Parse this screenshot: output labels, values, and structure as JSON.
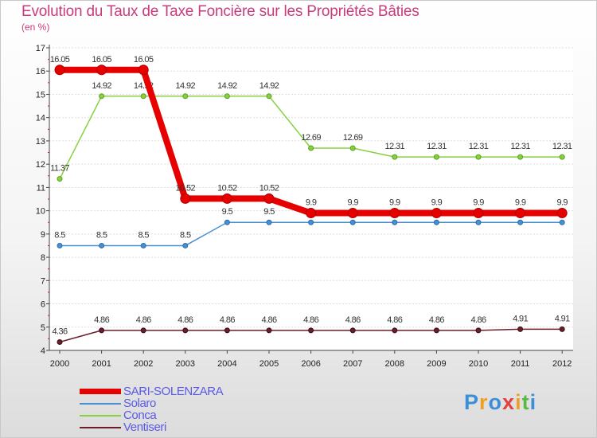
{
  "header": {
    "title": "Evolution du Taux de Taxe Foncière sur les Propriétés Bâties",
    "subtitle": "(en %)"
  },
  "chart_data": {
    "type": "line",
    "title": "Evolution du Taux de Taxe Foncière sur les Propriétés Bâties",
    "ylabel": "(en %)",
    "xlabel": "",
    "ylim": [
      4,
      17
    ],
    "yticks": [
      4,
      5,
      6,
      7,
      8,
      9,
      10,
      11,
      12,
      13,
      14,
      15,
      16,
      17
    ],
    "categories": [
      "2000",
      "2001",
      "2002",
      "2003",
      "2004",
      "2005",
      "2006",
      "2007",
      "2008",
      "2009",
      "2010",
      "2011",
      "2012"
    ],
    "legend_position": "bottom-left",
    "series": [
      {
        "name": "Ventiseri",
        "color": "#6b1e2a",
        "values": [
          4.36,
          4.86,
          4.86,
          4.86,
          4.86,
          4.86,
          4.86,
          4.86,
          4.86,
          4.86,
          4.86,
          4.91,
          4.91
        ],
        "labels": [
          "4.36",
          "4.86",
          "4.86",
          "4.86",
          "4.86",
          "4.86",
          "4.86",
          "4.86",
          "4.86",
          "4.86",
          "4.86",
          "4.91",
          "4.91"
        ]
      },
      {
        "name": "Solaro",
        "color": "#4a90d0",
        "values": [
          8.5,
          8.5,
          8.5,
          8.5,
          9.5,
          9.5,
          9.5,
          9.5,
          9.5,
          9.5,
          9.5,
          9.5,
          9.5
        ],
        "labels": [
          "8.5",
          "8.5",
          "8.5",
          "8.5",
          "9.5",
          "9.5",
          "",
          "",
          "",
          "",
          "",
          "",
          ""
        ]
      },
      {
        "name": "Conca",
        "color": "#88d040",
        "values": [
          11.37,
          14.92,
          14.92,
          14.92,
          14.92,
          14.92,
          12.69,
          12.69,
          12.31,
          12.31,
          12.31,
          12.31,
          12.31
        ],
        "labels": [
          "11.37",
          "14.92",
          "14.92",
          "14.92",
          "14.92",
          "14.92",
          "12.69",
          "12.69",
          "12.31",
          "12.31",
          "12.31",
          "12.31",
          "12.31"
        ]
      },
      {
        "name": "SARI-SOLENZARA",
        "color": "#e60000",
        "values": [
          16.05,
          16.05,
          16.05,
          10.52,
          10.52,
          10.52,
          9.9,
          9.9,
          9.9,
          9.9,
          9.9,
          9.9,
          9.9
        ],
        "labels": [
          "16.05",
          "16.05",
          "16.05",
          "10.52",
          "10.52",
          "10.52",
          "9.9",
          "9.9",
          "9.9",
          "9.9",
          "9.9",
          "9.9",
          "9.9"
        ]
      }
    ]
  },
  "legend": {
    "items": [
      {
        "label": "SARI-SOLENZARA",
        "color": "#e60000"
      },
      {
        "label": "Solaro",
        "color": "#4a90d0"
      },
      {
        "label": "Conca",
        "color": "#88d040"
      },
      {
        "label": "Ventiseri",
        "color": "#6b1e2a"
      }
    ]
  },
  "brand": {
    "letters": [
      "P",
      "r",
      "o",
      "x",
      "i",
      "t",
      "i"
    ],
    "colors": [
      "#3a8fd8",
      "#f0a020",
      "#3a8fd8",
      "#e04040",
      "#f0a020",
      "#58b848",
      "#3a8fd8"
    ]
  }
}
